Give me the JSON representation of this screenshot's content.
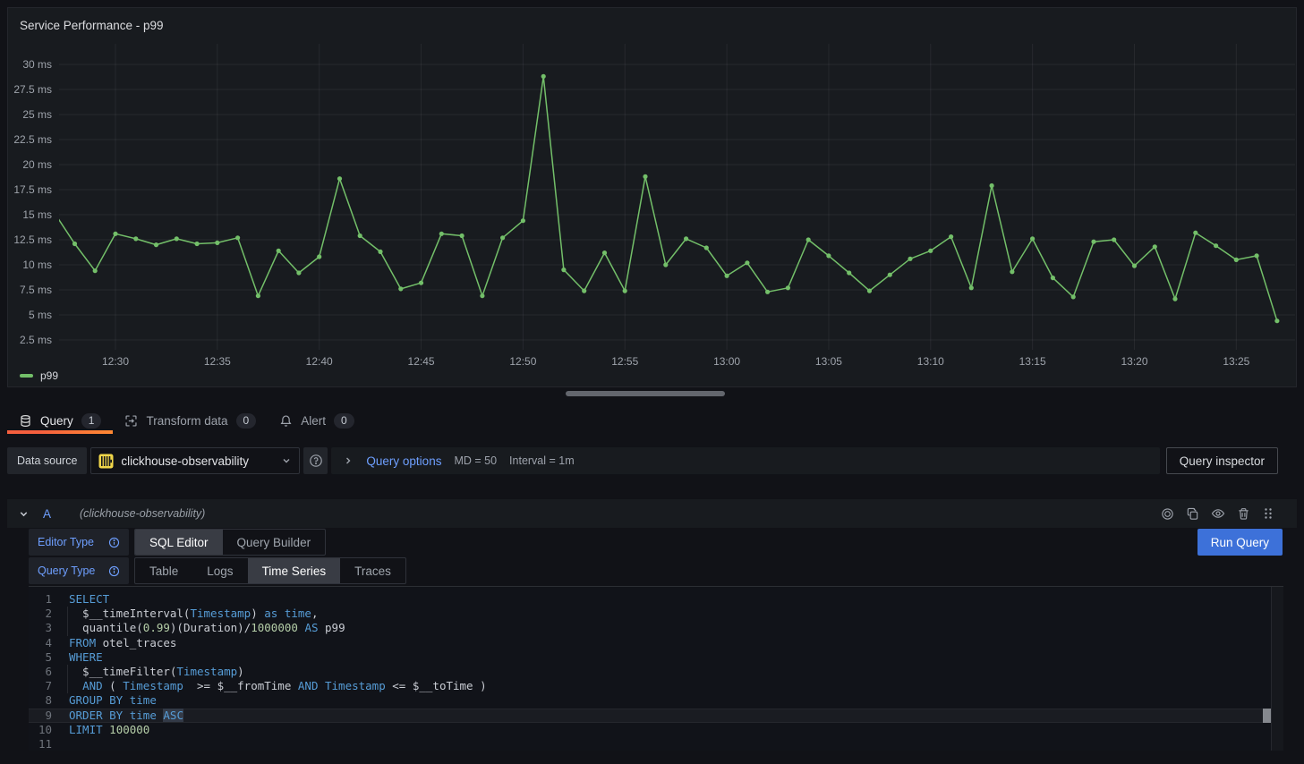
{
  "panel": {
    "title": "Service Performance - p99",
    "legend_label": "p99"
  },
  "chart_data": {
    "type": "line",
    "title": "Service Performance - p99",
    "xlabel": "",
    "ylabel": "",
    "unit": "ms",
    "series": [
      {
        "name": "p99",
        "color": "#73bf69"
      }
    ],
    "x": [
      "12:27",
      "12:28",
      "12:29",
      "12:30",
      "12:31",
      "12:32",
      "12:33",
      "12:34",
      "12:35",
      "12:36",
      "12:37",
      "12:38",
      "12:39",
      "12:40",
      "12:41",
      "12:42",
      "12:43",
      "12:44",
      "12:45",
      "12:46",
      "12:47",
      "12:48",
      "12:49",
      "12:50",
      "12:51",
      "12:52",
      "12:53",
      "12:54",
      "12:55",
      "12:56",
      "12:57",
      "12:58",
      "12:59",
      "13:00",
      "13:01",
      "13:02",
      "13:03",
      "13:04",
      "13:05",
      "13:06",
      "13:07",
      "13:08",
      "13:09",
      "13:10",
      "13:11",
      "13:12",
      "13:13",
      "13:14",
      "13:15",
      "13:16",
      "13:17",
      "13:18",
      "13:19",
      "13:20",
      "13:21",
      "13:22",
      "13:23",
      "13:24",
      "13:25",
      "13:26",
      "13:27"
    ],
    "values": [
      15.2,
      12.1,
      9.4,
      13.1,
      12.6,
      12.0,
      12.6,
      12.1,
      12.2,
      12.7,
      6.9,
      11.4,
      9.2,
      10.8,
      18.6,
      12.9,
      11.3,
      7.6,
      8.2,
      13.1,
      12.9,
      6.9,
      12.7,
      14.4,
      28.8,
      9.5,
      7.4,
      11.2,
      7.4,
      18.8,
      10.0,
      12.6,
      11.7,
      8.9,
      10.2,
      7.3,
      7.7,
      12.5,
      10.9,
      9.2,
      7.4,
      9.0,
      10.6,
      11.4,
      12.8,
      7.7,
      17.9,
      9.3,
      12.6,
      8.7,
      6.8,
      12.3,
      12.5,
      9.9,
      11.8,
      6.6,
      13.2,
      11.9,
      10.5,
      10.9,
      4.4
    ],
    "y_ticks": [
      2.5,
      5,
      7.5,
      10,
      12.5,
      15,
      17.5,
      20,
      22.5,
      25,
      27.5,
      30
    ],
    "x_ticks": [
      "12:30",
      "12:35",
      "12:40",
      "12:45",
      "12:50",
      "12:55",
      "13:00",
      "13:05",
      "13:10",
      "13:15",
      "13:20",
      "13:25"
    ],
    "ylim": [
      1.52,
      32.05
    ],
    "xlim": [
      "12:27:14",
      "13:27:53"
    ],
    "grid": true,
    "legend_position": "bottom-left"
  },
  "tabs": {
    "items": [
      {
        "label": "Query",
        "count": "1"
      },
      {
        "label": "Transform data",
        "count": "0"
      },
      {
        "label": "Alert",
        "count": "0"
      }
    ]
  },
  "datasource_row": {
    "label": "Data source",
    "value": "clickhouse-observability",
    "query_options_label": "Query options",
    "max_data_points": "MD = 50",
    "interval": "Interval = 1m",
    "inspector_button": "Query inspector"
  },
  "query_row": {
    "ref_id": "A",
    "datasource_hint": "(clickhouse-observability)"
  },
  "editor": {
    "editor_type_label": "Editor Type",
    "query_type_label": "Query Type",
    "editor_types": [
      "SQL Editor",
      "Query Builder"
    ],
    "query_types": [
      "Table",
      "Logs",
      "Time Series",
      "Traces"
    ],
    "active_editor_type": "SQL Editor",
    "active_query_type": "Time Series",
    "run_button": "Run Query"
  },
  "sql": {
    "lines": [
      {
        "n": 1,
        "tokens": [
          [
            "kw",
            "SELECT"
          ]
        ]
      },
      {
        "n": 2,
        "guide": true,
        "tokens": [
          [
            "pl",
            "  $__timeInterval("
          ],
          [
            "kw",
            "Timestamp"
          ],
          [
            "pl",
            ") "
          ],
          [
            "kw",
            "as"
          ],
          [
            "pl",
            " "
          ],
          [
            "kw",
            "time"
          ],
          [
            "pl",
            ","
          ]
        ]
      },
      {
        "n": 3,
        "guide": true,
        "tokens": [
          [
            "pl",
            "  quantile("
          ],
          [
            "num",
            "0.99"
          ],
          [
            "pl",
            ")(Duration)/"
          ],
          [
            "num",
            "1000000"
          ],
          [
            "pl",
            " "
          ],
          [
            "kw",
            "AS"
          ],
          [
            "pl",
            " p99"
          ]
        ]
      },
      {
        "n": 4,
        "tokens": [
          [
            "kw",
            "FROM"
          ],
          [
            "pl",
            " otel_traces"
          ]
        ]
      },
      {
        "n": 5,
        "tokens": [
          [
            "kw",
            "WHERE"
          ]
        ]
      },
      {
        "n": 6,
        "guide": true,
        "tokens": [
          [
            "pl",
            "  $__timeFilter("
          ],
          [
            "kw",
            "Timestamp"
          ],
          [
            "pl",
            ")"
          ]
        ]
      },
      {
        "n": 7,
        "guide": true,
        "tokens": [
          [
            "pl",
            "  "
          ],
          [
            "kw",
            "AND"
          ],
          [
            "pl",
            " ( "
          ],
          [
            "kw",
            "Timestamp"
          ],
          [
            "pl",
            "  >= $__fromTime "
          ],
          [
            "kw",
            "AND"
          ],
          [
            "pl",
            " "
          ],
          [
            "kw",
            "Timestamp"
          ],
          [
            "pl",
            " <= $__toTime )"
          ]
        ]
      },
      {
        "n": 8,
        "tokens": [
          [
            "kw",
            "GROUP BY"
          ],
          [
            "pl",
            " "
          ],
          [
            "kw",
            "time"
          ]
        ]
      },
      {
        "n": 9,
        "active": true,
        "tokens": [
          [
            "kw",
            "ORDER BY"
          ],
          [
            "pl",
            " "
          ],
          [
            "kw",
            "time"
          ],
          [
            "pl",
            " "
          ],
          [
            "sel",
            "ASC"
          ]
        ]
      },
      {
        "n": 10,
        "tokens": [
          [
            "kw",
            "LIMIT"
          ],
          [
            "pl",
            " "
          ],
          [
            "num",
            "100000"
          ]
        ]
      },
      {
        "n": 11,
        "tokens": []
      }
    ]
  },
  "colors": {
    "series_green": "#73bf69",
    "link_blue": "#6e9fff",
    "run_button_blue": "#3d71d9",
    "tab_underline_start": "#f55f3e",
    "tab_underline_end": "#ff8833",
    "clickhouse_yellow": "#f0d64a"
  }
}
